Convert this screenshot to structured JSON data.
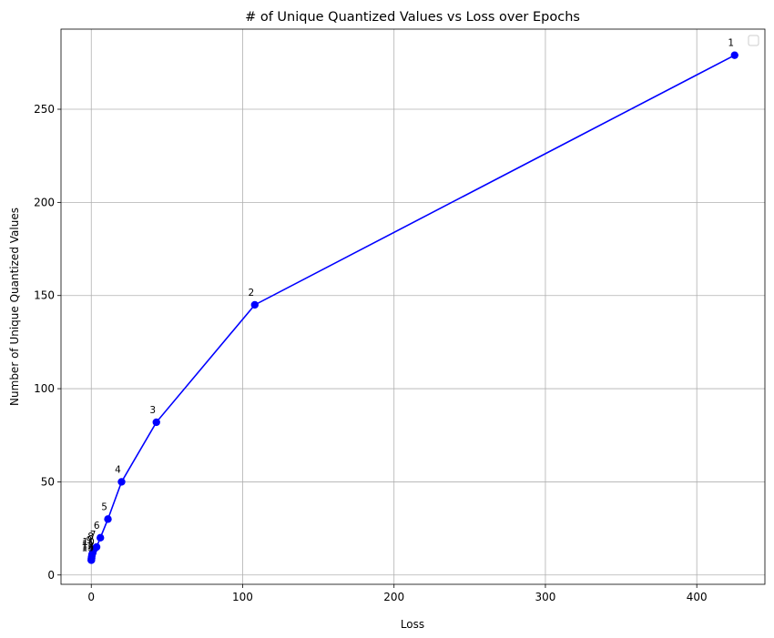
{
  "chart_data": {
    "type": "line",
    "title": "# of Unique Quantized Values vs Loss over Epochs",
    "xlabel": "Loss",
    "ylabel": "Number of Unique Quantized Values",
    "xlim": [
      -20,
      445
    ],
    "ylim": [
      -5,
      293
    ],
    "xticks": [
      0,
      100,
      200,
      300,
      400
    ],
    "yticks": [
      0,
      50,
      100,
      150,
      200,
      250
    ],
    "grid": true,
    "legend": "top-right (empty)",
    "colors": {
      "line": "#0000ff",
      "grid": "#b0b0b0"
    },
    "series": [
      {
        "x": [
          425,
          108,
          43,
          20,
          11,
          6,
          3.5,
          2,
          1,
          0.5,
          0.3,
          0.2,
          0.1,
          0.05,
          0.02
        ],
        "y": [
          279,
          145,
          82,
          50,
          30,
          20,
          15,
          14,
          12,
          11,
          10,
          9,
          9,
          8,
          8
        ],
        "labels": [
          "1",
          "2",
          "3",
          "4",
          "5",
          "6",
          "7",
          "8",
          "9",
          "10",
          "11",
          "12",
          "13",
          "14",
          "15"
        ]
      }
    ]
  }
}
